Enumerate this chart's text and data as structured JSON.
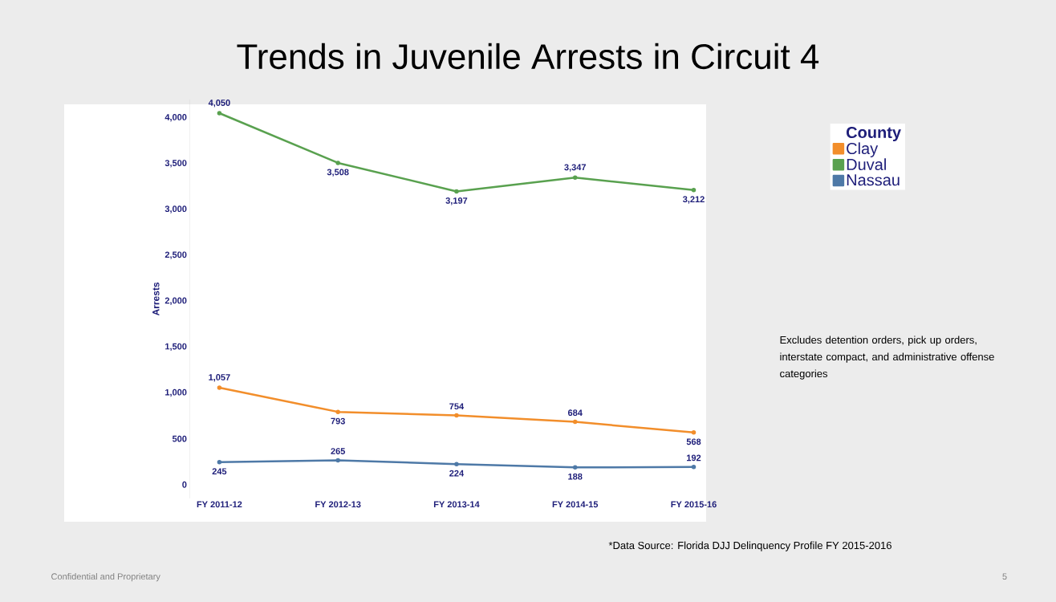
{
  "chart_data": {
    "type": "line",
    "title": "Trends in Juvenile Arrests in Circuit 4",
    "ylabel": "Arrests",
    "legend_title": "County",
    "categories": [
      "FY 2011-12",
      "FY 2012-13",
      "FY 2013-14",
      "FY 2014-15",
      "FY 2015-16"
    ],
    "series": [
      {
        "name": "Clay",
        "color": "#f28e2b",
        "values": [
          1057,
          793,
          754,
          684,
          568
        ],
        "value_labels": [
          "1,057",
          "793",
          "754",
          "684",
          "568"
        ]
      },
      {
        "name": "Duval",
        "color": "#59a14f",
        "values": [
          4050,
          3508,
          3197,
          3347,
          3212
        ],
        "value_labels": [
          "4,050",
          "3,508",
          "3,197",
          "3,347",
          "3,212"
        ]
      },
      {
        "name": "Nassau",
        "color": "#4e79a7",
        "values": [
          245,
          265,
          224,
          188,
          192
        ],
        "value_labels": [
          "245",
          "265",
          "224",
          "188",
          "192"
        ]
      }
    ],
    "ylim": [
      -150,
      4200
    ],
    "yticks": [
      {
        "value": 0,
        "label": "0"
      },
      {
        "value": 500,
        "label": "500"
      },
      {
        "value": 1000,
        "label": "1,000"
      },
      {
        "value": 1500,
        "label": "1,500"
      },
      {
        "value": 2000,
        "label": "2,000"
      },
      {
        "value": 2500,
        "label": "2,500"
      },
      {
        "value": 3000,
        "label": "3,000"
      },
      {
        "value": 3500,
        "label": "3,500"
      },
      {
        "value": 4000,
        "label": "4,000"
      }
    ],
    "legend": "top right",
    "marker": "circle",
    "line_style": "solid",
    "annotations": [
      "Excludes detention orders, pick up orders, interstate compact, and administrative offense categories",
      "*Data Source: Florida DJJ Delinquency Profile FY 2015-2016",
      "Confidential and Proprietary",
      "5"
    ]
  }
}
